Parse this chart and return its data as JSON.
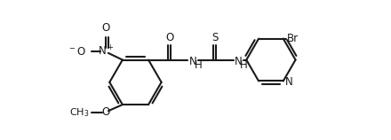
{
  "bg": "#ffffff",
  "lc": "#1a1a1a",
  "lw": 1.5,
  "fs": 8.5,
  "figw": 4.4,
  "figh": 1.58,
  "dpi": 100,
  "xlim": [
    -0.5,
    10.5
  ],
  "ylim": [
    -0.3,
    4.8
  ]
}
